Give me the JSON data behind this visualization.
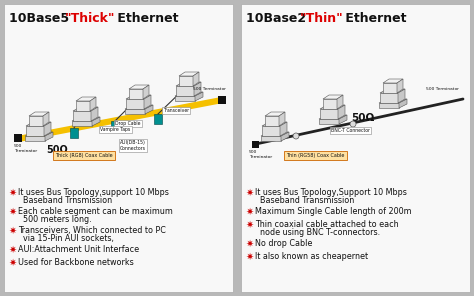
{
  "bg_color": "#b8b8b8",
  "panel_color": "#f8f8f8",
  "title_fontsize": 9,
  "bullet_fontsize": 5.8,
  "bullet_color": "#cc0000",
  "bullet_char": "✷",
  "left_bullets": [
    [
      "It uses Bus Topology,support 10 Mbps",
      "Baseband Trnsmission"
    ],
    [
      "Each cable segment can be maximum",
      "500 meters long."
    ],
    [
      "Transceivers, Which connected to PC",
      "via 15-Pin AUI sockets,"
    ],
    [
      "AUI:Attachment Unit Interface"
    ],
    [
      "Used for Backbone networks"
    ]
  ],
  "right_bullets": [
    [
      "It uses Bus Topology,Support 10 Mbps",
      "Baseband Transmission"
    ],
    [
      "Maximum Single Cable length of 200m"
    ],
    [
      "Thin coaxial cable attached to each",
      "node using BNC T-connectors."
    ],
    [
      "No drop Cable"
    ],
    [
      "It also known as cheapernet"
    ]
  ],
  "cable_color_left": "#f5c000",
  "cable_color_right": "#222222",
  "teal_color": "#009090",
  "label_bg": "#ffffff",
  "label_border": "#888888",
  "coax_bg_left": "#ffe0a0",
  "coax_bg_right": "#ffe0a0",
  "coax_border": "#cc6600"
}
